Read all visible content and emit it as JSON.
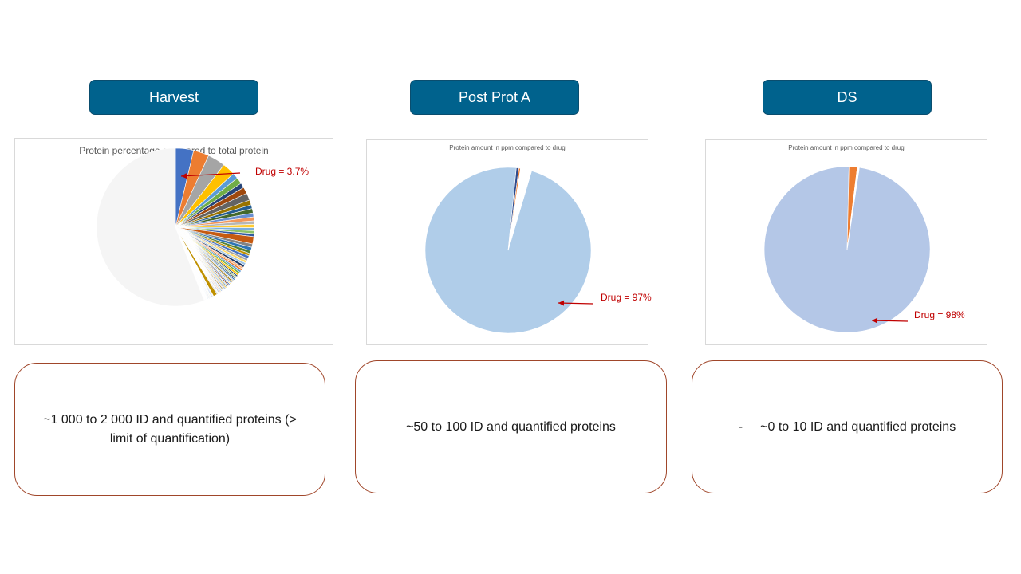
{
  "stages": [
    {
      "label": "Harvest"
    },
    {
      "label": "Post Prot A"
    },
    {
      "label": "DS"
    }
  ],
  "chart_data": [
    {
      "type": "pie",
      "title": "Protein percentage compared to total protein",
      "annotation": "Drug = 3.7%",
      "start_angle_deg": 0,
      "highlight_index": 0,
      "slices": [
        {
          "label": "Drug",
          "value": 3.7,
          "color": "#4472c4"
        },
        {
          "label": "",
          "value": 3.2,
          "color": "#ed7d31"
        },
        {
          "label": "",
          "value": 3.6,
          "color": "#a5a5a5"
        },
        {
          "label": "",
          "value": 2.6,
          "color": "#ffc000"
        },
        {
          "label": "",
          "value": 1.2,
          "color": "#5b9bd5"
        },
        {
          "label": "",
          "value": 1.3,
          "color": "#70ad47"
        },
        {
          "label": "",
          "value": 1.0,
          "color": "#264478"
        },
        {
          "label": "",
          "value": 1.3,
          "color": "#9e480e"
        },
        {
          "label": "",
          "value": 1.5,
          "color": "#636363"
        },
        {
          "label": "",
          "value": 1.0,
          "color": "#997300"
        },
        {
          "label": "",
          "value": 0.8,
          "color": "#255e91"
        },
        {
          "label": "",
          "value": 0.9,
          "color": "#43682b"
        },
        {
          "label": "",
          "value": 0.8,
          "color": "#698ed0"
        },
        {
          "label": "",
          "value": 0.8,
          "color": "#f1975a"
        },
        {
          "label": "",
          "value": 0.7,
          "color": "#b7b7b7"
        },
        {
          "label": "",
          "value": 0.7,
          "color": "#ffcd33"
        },
        {
          "label": "",
          "value": 0.6,
          "color": "#7cafdd"
        },
        {
          "label": "",
          "value": 0.6,
          "color": "#8cc168"
        },
        {
          "label": "",
          "value": 0.6,
          "color": "#335aa1"
        },
        {
          "label": "",
          "value": 1.5,
          "color": "#c55a11"
        },
        {
          "label": "",
          "value": 0.7,
          "color": "#848484"
        },
        {
          "label": "",
          "value": 0.7,
          "color": "#2e75b6"
        },
        {
          "label": "",
          "value": 0.6,
          "color": "#548235"
        },
        {
          "label": "",
          "value": 0.5,
          "color": "#bf9000"
        },
        {
          "label": "",
          "value": 0.6,
          "color": "#4472c4"
        },
        {
          "label": "",
          "value": 0.5,
          "color": "#a5a5a5"
        },
        {
          "label": "",
          "value": 0.5,
          "color": "#ffd966"
        },
        {
          "label": "",
          "value": 0.5,
          "color": "#9dc3e6"
        },
        {
          "label": "",
          "value": 0.5,
          "color": "#203864"
        },
        {
          "label": "",
          "value": 0.4,
          "color": "#f4b183"
        },
        {
          "label": "",
          "value": 0.4,
          "color": "#ed7d31"
        },
        {
          "label": "",
          "value": 0.4,
          "color": "#5b9bd5"
        },
        {
          "label": "",
          "value": 0.4,
          "color": "#70ad47"
        },
        {
          "label": "",
          "value": 0.4,
          "color": "#ffc000"
        },
        {
          "label": "",
          "value": 0.3,
          "color": "#264478"
        },
        {
          "label": "",
          "value": 0.3,
          "color": "#a9d18e"
        },
        {
          "label": "",
          "value": 0.3,
          "color": "#636363"
        },
        {
          "label": "",
          "value": 0.3,
          "color": "#2e75b6"
        },
        {
          "label": "",
          "value": 0.3,
          "color": "#c9c9c9"
        },
        {
          "label": "",
          "value": 0.3,
          "color": "#997300"
        },
        {
          "label": "",
          "value": 0.3,
          "color": "#8faadc"
        },
        {
          "label": "",
          "value": 0.25,
          "color": "#ffe699"
        },
        {
          "label": "",
          "value": 0.25,
          "color": "#4472c4"
        },
        {
          "label": "",
          "value": 0.25,
          "color": "#9e480e"
        },
        {
          "label": "",
          "value": 0.2,
          "color": "#bdd7ee"
        },
        {
          "label": "",
          "value": 0.2,
          "color": "#255e91"
        },
        {
          "label": "",
          "value": 0.2,
          "color": "#ffc000"
        },
        {
          "label": "",
          "value": 0.2,
          "color": "#a5a5a5"
        },
        {
          "label": "",
          "value": 0.2,
          "color": "#5b9bd5"
        },
        {
          "label": "",
          "value": 0.2,
          "color": "#f8cbad"
        },
        {
          "label": "",
          "value": 0.2,
          "color": "#7f6000"
        },
        {
          "label": "",
          "value": 0.2,
          "color": "#dae3f3"
        },
        {
          "label": "",
          "value": 0.15,
          "color": "#4472c4"
        },
        {
          "label": "",
          "value": 0.15,
          "color": "#c5e0b4"
        },
        {
          "label": "",
          "value": 0.15,
          "color": "#ed7d31"
        },
        {
          "label": "",
          "value": 0.15,
          "color": "#d9d9d9"
        },
        {
          "label": "",
          "value": 0.15,
          "color": "#2f5597"
        },
        {
          "label": "",
          "value": 0.15,
          "color": "#fff2cc"
        },
        {
          "label": "",
          "value": 0.15,
          "color": "#deebf7"
        },
        {
          "label": "",
          "value": 0.15,
          "color": "#595959"
        },
        {
          "label": "",
          "value": 0.8,
          "color": "#bf9000"
        },
        {
          "label": "",
          "value": 0.15,
          "color": "#f2f2f2"
        },
        {
          "label": "",
          "value": 0.15,
          "color": "#b4c7e7"
        },
        {
          "label": "",
          "value": 0.15,
          "color": "#4472c4"
        },
        {
          "label": "",
          "value": 0.12,
          "color": "#e2f0d9"
        },
        {
          "label": "",
          "value": 0.12,
          "color": "#ffd966"
        },
        {
          "label": "",
          "value": 0.12,
          "color": "#9dc3e6"
        },
        {
          "label": "",
          "value": 0.12,
          "color": "#fbe5d6"
        },
        {
          "label": "",
          "value": 0.12,
          "color": "#203864"
        },
        {
          "label": "",
          "value": 0.12,
          "color": "#ededed"
        },
        {
          "label": "",
          "value": 0.12,
          "color": "#5b9bd5"
        },
        {
          "label": "",
          "value": 0.1,
          "color": "#fff2cc"
        },
        {
          "label": "",
          "value": 0.1,
          "color": "#1f4e79"
        },
        {
          "label": "",
          "value": 0.1,
          "color": "#f2f2f2"
        },
        {
          "label": "",
          "value": 0.1,
          "color": "#dae3f3"
        },
        {
          "label": "",
          "value": 0.1,
          "color": "#4472c4"
        },
        {
          "label": "",
          "value": 0.1,
          "color": "#fbe5d6"
        },
        {
          "label": "",
          "value": 0.1,
          "color": "#ededed"
        },
        {
          "label": "",
          "value": 0.1,
          "color": "#264478"
        },
        {
          "label": "",
          "value": 55.9,
          "color": "#f5f5f5"
        }
      ]
    },
    {
      "type": "pie",
      "title": "Protein amount in ppm compared to drug",
      "annotation": "Drug = 97%",
      "start_angle_deg": 16.5,
      "highlight_index": 0,
      "slices": [
        {
          "label": "Drug",
          "value": 97.0,
          "color": "#b0cde9"
        },
        {
          "label": "",
          "value": 0.5,
          "color": "#2f4b8c"
        },
        {
          "label": "",
          "value": 0.3,
          "color": "#ed7d31"
        },
        {
          "label": "",
          "value": 2.2,
          "color": "#ffffff"
        }
      ]
    },
    {
      "type": "pie",
      "title": "Protein amount in ppm compared to drug",
      "annotation": "Drug = 98%",
      "start_angle_deg": 8.5,
      "highlight_index": 0,
      "slices": [
        {
          "label": "Drug",
          "value": 98.0,
          "color": "#b4c7e7"
        },
        {
          "label": "",
          "value": 1.6,
          "color": "#ed7d31"
        },
        {
          "label": "",
          "value": 0.4,
          "color": "#ffffff"
        }
      ]
    }
  ],
  "info_boxes": [
    {
      "dash": "",
      "text": "~1 000 to 2 000 ID and quantified proteins (> limit of quantification)"
    },
    {
      "dash": "",
      "text": "~50 to 100 ID and quantified proteins"
    },
    {
      "dash": "-",
      "text": "~0 to 10 ID and quantified proteins"
    }
  ]
}
